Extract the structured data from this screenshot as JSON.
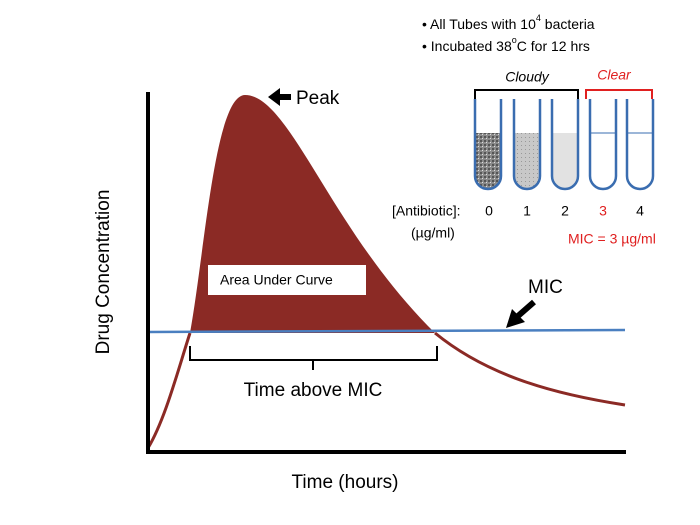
{
  "notes": [
    {
      "bullet": "•",
      "parts": [
        "All Tubes with 10",
        "4",
        " bacteria"
      ]
    },
    {
      "bullet": "•",
      "parts": [
        "Incubated 38",
        "o",
        "C for 12 hrs"
      ]
    }
  ],
  "groups": {
    "cloudy": "Cloudy",
    "clear": "Clear"
  },
  "antibiotic_label": "[Antibiotic]:",
  "units_label": "(µg/ml)",
  "concentrations": [
    "0",
    "1",
    "2",
    "3",
    "4"
  ],
  "mic_result": "MIC = 3 µg/ml",
  "peak_label": "Peak",
  "auc_label": "Area Under Curve",
  "mic_label": "MIC",
  "time_above_label": "Time above MIC",
  "y_axis_label": "Drug Concentration",
  "x_axis_label": "Time (hours)"
}
